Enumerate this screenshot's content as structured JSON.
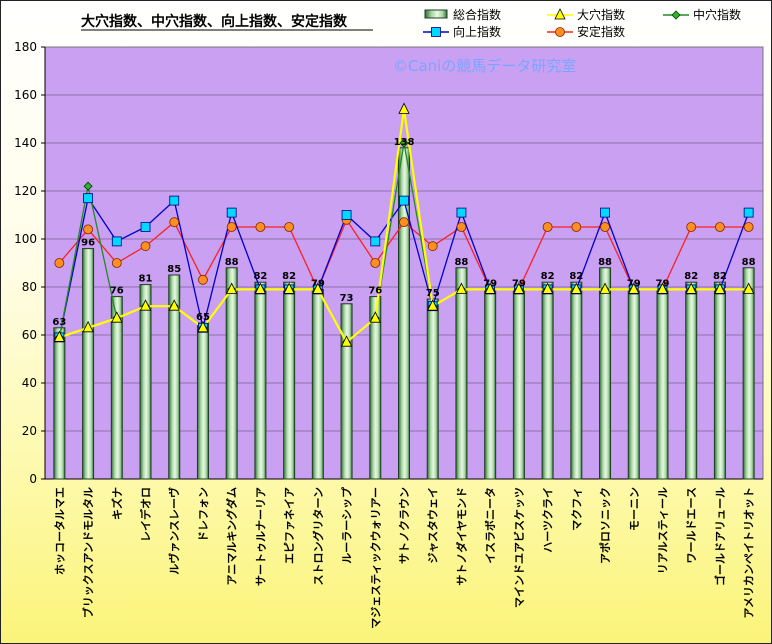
{
  "chart_data": {
    "type": "bar",
    "title": "大穴指数、中穴指数、向上指数、安定指数",
    "watermark": "©Caniの競馬データ研究室",
    "ylim": [
      0,
      180
    ],
    "yticks": [
      0,
      20,
      40,
      60,
      80,
      100,
      120,
      140,
      160,
      180
    ],
    "grid": true,
    "legend_position": "top-right",
    "categories": [
      "ホッコータルマエ",
      "ブリックスアンドモルタル",
      "キズナ",
      "レイデオロ",
      "ルヴァンスレーヴ",
      "ドレフォン",
      "アニマルキングダム",
      "サートゥルナーリア",
      "エピファネイア",
      "ストロングリターン",
      "ルーラーシップ",
      "マジェスティックウォリアー",
      "サトノクラウン",
      "ジャスタウェイ",
      "サトノダイヤモンド",
      "イスラボニータ",
      "マインドユアビスケッツ",
      "ハーツクライ",
      "マクフィ",
      "アポロソニック",
      "モーニン",
      "リアルスティール",
      "ワールドエース",
      "ゴールドアリュール",
      "アメリカンペイトリオット"
    ],
    "series": [
      {
        "name": "総合指数",
        "type": "bar",
        "color": "#2e8b57",
        "values": [
          63,
          96,
          76,
          81,
          85,
          65,
          88,
          82,
          82,
          79,
          73,
          76,
          138,
          75,
          88,
          79,
          79,
          82,
          82,
          88,
          79,
          79,
          82,
          82,
          88
        ]
      },
      {
        "name": "大穴指数",
        "type": "line",
        "color": "#ffff00",
        "marker": "triangle",
        "values": [
          59,
          63,
          67,
          72,
          72,
          63,
          79,
          79,
          79,
          79,
          57,
          67,
          154,
          72,
          79,
          79,
          79,
          79,
          79,
          79,
          79,
          79,
          79,
          79,
          79
        ]
      },
      {
        "name": "中穴指数",
        "type": "line",
        "color": "#228b22",
        "marker": "diamond",
        "values": [
          59,
          122,
          67,
          72,
          72,
          63,
          79,
          79,
          79,
          79,
          57,
          67,
          140,
          72,
          79,
          79,
          79,
          79,
          79,
          79,
          79,
          79,
          79,
          79,
          79
        ]
      },
      {
        "name": "向上指数",
        "type": "line",
        "color": "#0000cd",
        "marker": "square",
        "values": [
          59,
          117,
          99,
          105,
          116,
          63,
          111,
          79,
          79,
          79,
          110,
          99,
          116,
          72,
          111,
          79,
          79,
          79,
          79,
          111,
          79,
          79,
          79,
          79,
          111
        ]
      },
      {
        "name": "安定指数",
        "type": "line",
        "color": "#ff2020",
        "marker": "circle",
        "values": [
          90,
          104,
          90,
          97,
          107,
          83,
          105,
          105,
          105,
          79,
          108,
          90,
          107,
          97,
          105,
          79,
          79,
          105,
          105,
          105,
          79,
          79,
          105,
          105,
          105
        ]
      }
    ]
  }
}
